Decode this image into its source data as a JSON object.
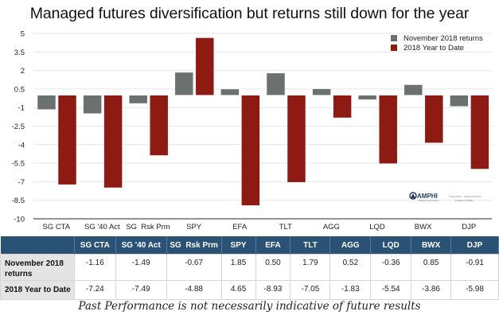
{
  "chart_data": {
    "type": "bar",
    "title": "Managed futures diversification but returns still down for the year",
    "categories": [
      "SG CTA",
      "SG '40 Act",
      "SG  Rsk Prm",
      "SPY",
      "EFA",
      "TLT",
      "AGG",
      "LQD",
      "BWX",
      "DJP"
    ],
    "series": [
      {
        "name": "November 2018 returns",
        "color": "#6b716e",
        "values": [
          -1.16,
          -1.49,
          -0.67,
          1.85,
          0.5,
          1.79,
          0.52,
          -0.36,
          0.85,
          -0.91
        ]
      },
      {
        "name": "2018 Year to Date",
        "color": "#8e1a14",
        "values": [
          -7.24,
          -7.49,
          -4.88,
          4.65,
          -8.93,
          -7.05,
          -1.83,
          -5.54,
          -3.86,
          -5.98
        ]
      }
    ],
    "ylim": [
      -10,
      5
    ],
    "yticks": [
      5,
      3.5,
      2,
      0.5,
      -1,
      -2.5,
      -4,
      -5.5,
      -7,
      -8.5,
      -10
    ],
    "ytick_labels": [
      "5",
      "3.5",
      "2",
      "0.5",
      "-1",
      "-2.5",
      "-4",
      "-5.5",
      "-7",
      "-8.5",
      "-10"
    ],
    "xlabel": "",
    "ylabel": "",
    "grid": true,
    "legend_position": "top-right"
  },
  "logo": {
    "name": "AMPHI",
    "subtitle": "Research and Trading",
    "tagline": "Trading Teams - Globally Connected",
    "division": "A division of LABDA"
  },
  "table": {
    "headers": [
      "",
      "SG CTA",
      "SG '40 Act",
      "SG  Rsk Prm",
      "SPY",
      "EFA",
      "TLT",
      "AGG",
      "LQD",
      "BWX",
      "DJP"
    ],
    "rows": [
      {
        "label": "November 2018 returns",
        "values": [
          "-1.16",
          "-1.49",
          "-0.67",
          "1.85",
          "0.50",
          "1.79",
          "0.52",
          "-0.36",
          "0.85",
          "-0.91"
        ]
      },
      {
        "label": "2018 Year to Date",
        "values": [
          "-7.24",
          "-7.49",
          "-4.88",
          "4.65",
          "-8.93",
          "-7.05",
          "-1.83",
          "-5.54",
          "-3.86",
          "-5.98"
        ]
      }
    ]
  },
  "caption": "Past Performance is not necessarily indicative of future results"
}
